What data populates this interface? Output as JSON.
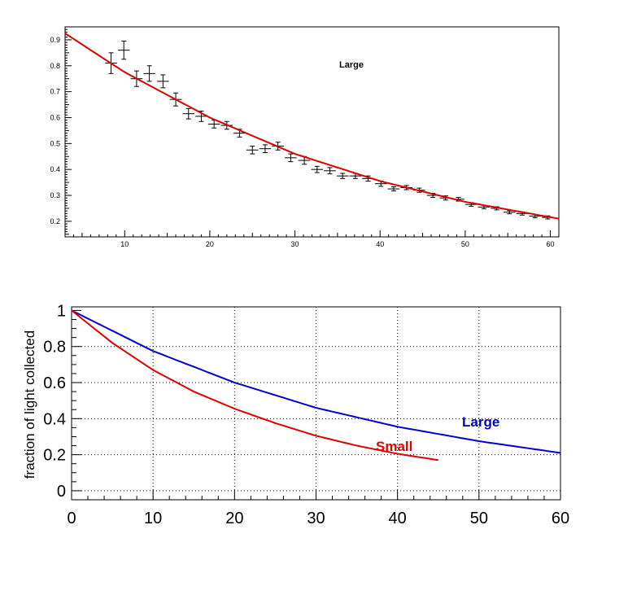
{
  "colors": {
    "fit": "#dd0000",
    "large": "#0000cc",
    "small": "#e00000",
    "points": "#000000",
    "grid": "#000000"
  },
  "chart_data": [
    {
      "type": "scatter",
      "title": "",
      "label": "Large",
      "xlabel": "",
      "ylabel": "",
      "xlim": [
        3,
        61
      ],
      "ylim": [
        0.14,
        0.95
      ],
      "xticks": [
        10,
        20,
        30,
        40,
        50,
        60
      ],
      "yticks": [
        0.2,
        0.3,
        0.4,
        0.5,
        0.6,
        0.7,
        0.8,
        0.9
      ],
      "grid": false,
      "series": [
        {
          "kind": "points",
          "x": [
            8.4,
            9.9,
            11.4,
            12.9,
            14.5,
            16.0,
            17.5,
            19.0,
            20.5,
            22.0,
            23.5,
            25.0,
            26.5,
            28.0,
            29.5,
            31.1,
            32.6,
            34.1,
            35.6,
            37.1,
            38.6,
            40.1,
            41.6,
            43.1,
            44.6,
            46.2,
            47.7,
            49.2,
            50.7,
            52.2,
            53.7,
            55.2,
            56.7,
            58.2,
            59.7
          ],
          "y": [
            0.81,
            0.86,
            0.75,
            0.77,
            0.74,
            0.67,
            0.615,
            0.605,
            0.575,
            0.57,
            0.54,
            0.475,
            0.48,
            0.49,
            0.445,
            0.435,
            0.4,
            0.395,
            0.375,
            0.375,
            0.365,
            0.345,
            0.325,
            0.33,
            0.32,
            0.3,
            0.29,
            0.285,
            0.265,
            0.255,
            0.25,
            0.235,
            0.23,
            0.22,
            0.215
          ],
          "yerr": [
            0.04,
            0.035,
            0.03,
            0.03,
            0.025,
            0.025,
            0.02,
            0.02,
            0.015,
            0.015,
            0.015,
            0.015,
            0.015,
            0.015,
            0.015,
            0.015,
            0.012,
            0.012,
            0.01,
            0.01,
            0.01,
            0.01,
            0.008,
            0.008,
            0.008,
            0.008,
            0.008,
            0.007,
            0.007,
            0.007,
            0.006,
            0.006,
            0.006,
            0.006,
            0.006
          ],
          "xerr": 0.7
        },
        {
          "kind": "fit",
          "x": [
            3,
            10,
            20,
            30,
            40,
            50,
            61
          ],
          "y": [
            0.925,
            0.775,
            0.6,
            0.46,
            0.355,
            0.275,
            0.21
          ]
        }
      ]
    },
    {
      "type": "line",
      "title": "",
      "xlabel": "",
      "ylabel": "fraction of light collected",
      "xlim": [
        0,
        60
      ],
      "ylim": [
        -0.05,
        1.02
      ],
      "xticks": [
        0,
        10,
        20,
        30,
        40,
        50,
        60
      ],
      "yticks": [
        0,
        0.2,
        0.4,
        0.6,
        0.8,
        1
      ],
      "tick_labels_y": [
        "0",
        "0.2",
        "0.4",
        "0.6",
        "0.8",
        "1"
      ],
      "grid": true,
      "series": [
        {
          "name": "Large",
          "x": [
            0,
            10,
            20,
            30,
            40,
            50,
            60
          ],
          "y": [
            1.0,
            0.775,
            0.6,
            0.46,
            0.355,
            0.275,
            0.21
          ]
        },
        {
          "name": "Small",
          "x": [
            0,
            5,
            10,
            15,
            20,
            25,
            30,
            35,
            40,
            45
          ],
          "y": [
            1.0,
            0.82,
            0.67,
            0.55,
            0.455,
            0.375,
            0.305,
            0.25,
            0.205,
            0.17
          ]
        }
      ]
    }
  ]
}
